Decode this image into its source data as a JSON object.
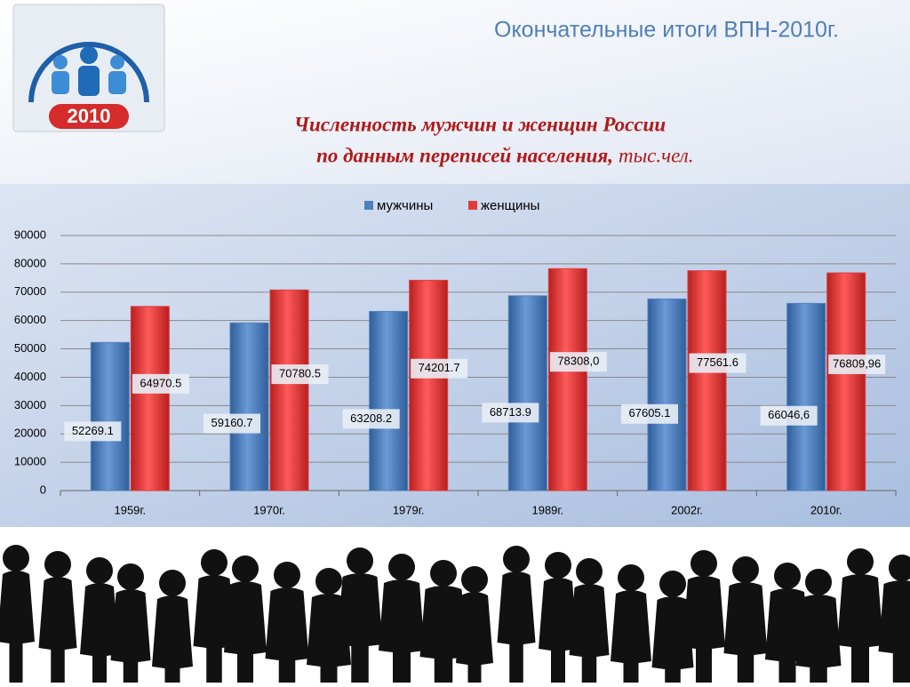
{
  "header": {
    "title": "Окончательные итоги ВПН-2010г.",
    "logo_text": "2010"
  },
  "chart_data": {
    "type": "bar",
    "title_lines": [
      "Численность мужчин и женщин России",
      "по данным переписей населения,",
      "тыс.чел."
    ],
    "categories": [
      "1959г.",
      "1970г.",
      "1979г.",
      "1989г.",
      "2002г.",
      "2010г."
    ],
    "series": [
      {
        "name": "мужчины",
        "color": "#4f81bd",
        "values": [
          52269.1,
          59160.7,
          63208.2,
          68713.9,
          67605.1,
          66046.6
        ],
        "value_labels": [
          "52269.1",
          "59160.7",
          "63208.2",
          "68713.9",
          "67605.1",
          "66046,6"
        ]
      },
      {
        "name": "женщины",
        "color": "#e03c3c",
        "values": [
          64970.5,
          70780.5,
          74201.7,
          78308.0,
          77561.6,
          76809.96
        ],
        "value_labels": [
          "64970.5",
          "70780.5",
          "74201.7",
          "78308,0",
          "77561.6",
          "76809,96"
        ]
      }
    ],
    "ylim": [
      0,
      90000
    ],
    "yticks": [
      0,
      10000,
      20000,
      30000,
      40000,
      50000,
      60000,
      70000,
      80000,
      90000
    ],
    "grid": true,
    "legend": "top"
  }
}
